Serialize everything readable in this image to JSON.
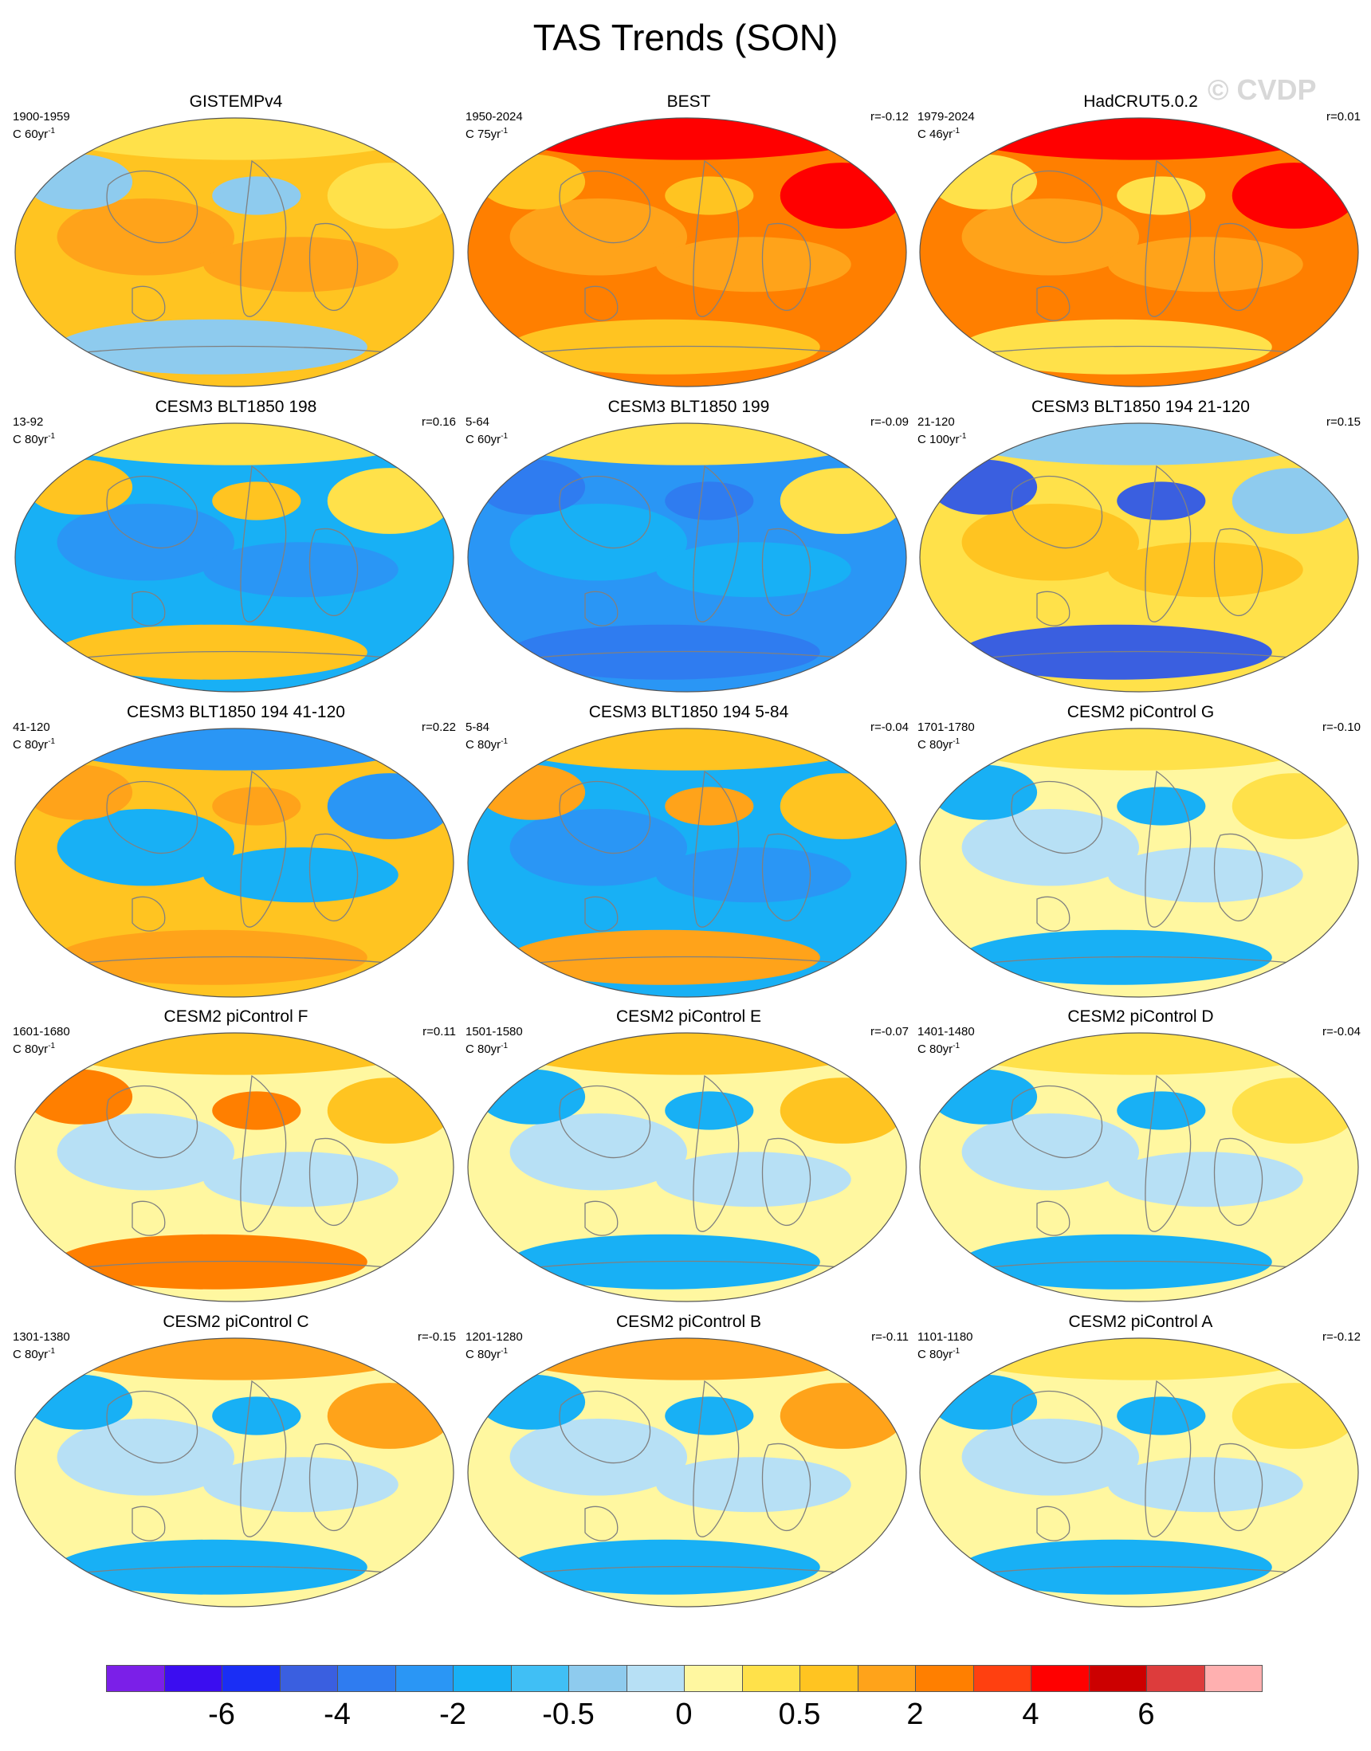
{
  "title": "TAS Trends (SON)",
  "watermark": "© CVDP",
  "palette": [
    "#7b1fe8",
    "#3b0df0",
    "#1a2ef5",
    "#3a5fe0",
    "#2f7cf0",
    "#2a96f5",
    "#18b0f5",
    "#40bff5",
    "#8ecbee",
    "#b7e0f5",
    "#fff7a0",
    "#ffe14a",
    "#ffc421",
    "#ffa31a",
    "#ff7f00",
    "#ff4010",
    "#ff0000",
    "#cc0000",
    "#dd3c3c",
    "#ffb0b0"
  ],
  "colorbar": {
    "labels": [
      {
        "text": "-6",
        "index": 2
      },
      {
        "text": "-4",
        "index": 4
      },
      {
        "text": "-2",
        "index": 6
      },
      {
        "text": "-0.5",
        "index": 8
      },
      {
        "text": "0",
        "index": 10
      },
      {
        "text": "0.5",
        "index": 12
      },
      {
        "text": "2",
        "index": 14
      },
      {
        "text": "4",
        "index": 16
      },
      {
        "text": "6",
        "index": 18
      }
    ]
  },
  "panels": [
    {
      "name": "GISTEMPv4",
      "years": "1900-1959",
      "scale": "C 60yr",
      "r": ""
    },
    {
      "name": "BEST",
      "years": "1950-2024",
      "scale": "C 75yr",
      "r": "r=-0.12"
    },
    {
      "name": "HadCRUT5.0.2",
      "years": "1979-2024",
      "scale": "C 46yr",
      "r": "r=0.01"
    },
    {
      "name": "CESM3 BLT1850 198",
      "years": "13-92",
      "scale": "C 80yr",
      "r": "r=0.16"
    },
    {
      "name": "CESM3 BLT1850 199",
      "years": "5-64",
      "scale": "C 60yr",
      "r": "r=-0.09"
    },
    {
      "name": "CESM3 BLT1850 194 21-120",
      "years": "21-120",
      "scale": "C 100yr",
      "r": "r=0.15"
    },
    {
      "name": "CESM3 BLT1850 194 41-120",
      "years": "41-120",
      "scale": "C 80yr",
      "r": "r=0.22"
    },
    {
      "name": "CESM3 BLT1850 194 5-84",
      "years": "5-84",
      "scale": "C 80yr",
      "r": "r=-0.04"
    },
    {
      "name": "CESM2 piControl G",
      "years": "1701-1780",
      "scale": "C 80yr",
      "r": "r=-0.10"
    },
    {
      "name": "CESM2 piControl F",
      "years": "1601-1680",
      "scale": "C 80yr",
      "r": "r=0.11"
    },
    {
      "name": "CESM2 piControl E",
      "years": "1501-1580",
      "scale": "C 80yr",
      "r": "r=-0.07"
    },
    {
      "name": "CESM2 piControl D",
      "years": "1401-1480",
      "scale": "C 80yr",
      "r": "r=-0.04"
    },
    {
      "name": "CESM2 piControl C",
      "years": "1301-1380",
      "scale": "C 80yr",
      "r": "r=-0.15"
    },
    {
      "name": "CESM2 piControl B",
      "years": "1201-1280",
      "scale": "C 80yr",
      "r": "r=-0.11"
    },
    {
      "name": "CESM2 piControl A",
      "years": "1101-1180",
      "scale": "C 80yr",
      "r": "r=-0.12"
    }
  ]
}
